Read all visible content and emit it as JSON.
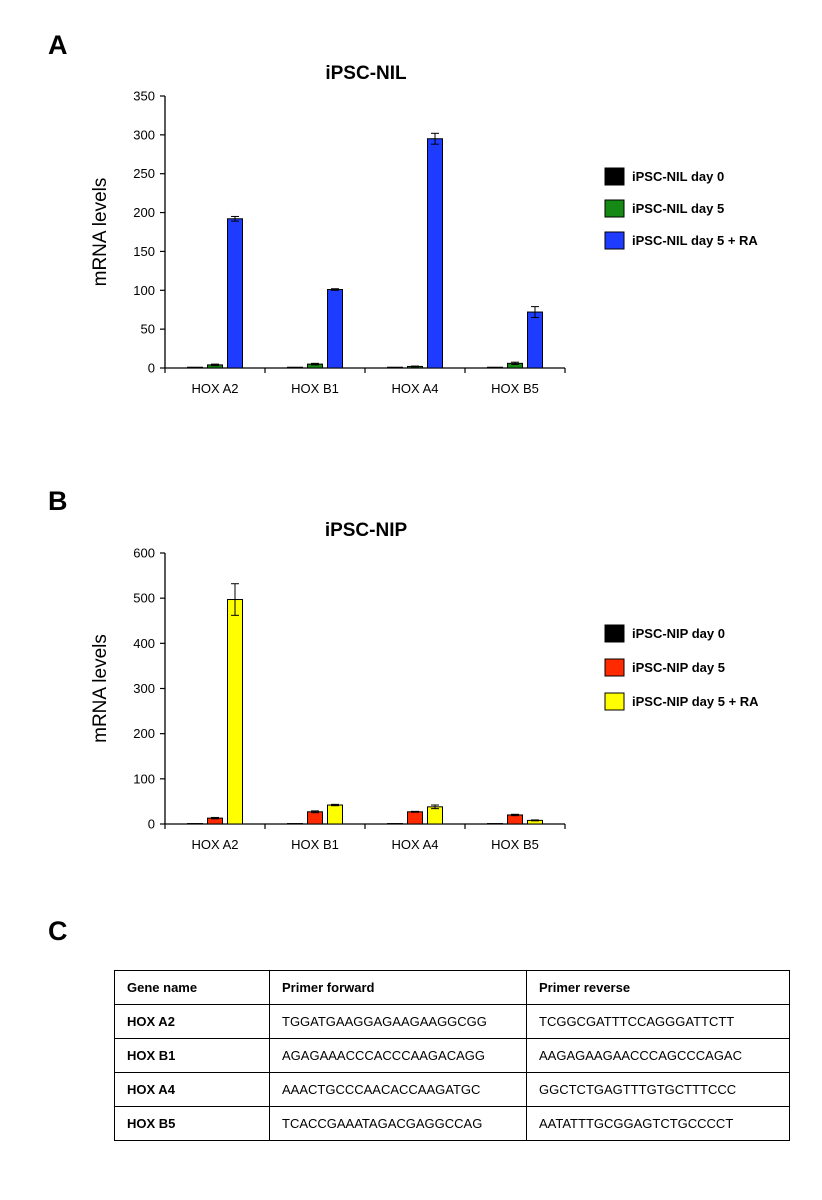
{
  "panels": [
    {
      "letter": "A"
    },
    {
      "letter": "B"
    },
    {
      "letter": "C"
    }
  ],
  "chart_data": [
    {
      "type": "bar",
      "title": "iPSC-NIL",
      "xlabel": "",
      "ylabel": "mRNA levels",
      "ylim": [
        0,
        350
      ],
      "yticks": [
        0,
        50,
        100,
        150,
        200,
        250,
        300,
        350
      ],
      "grid": false,
      "legend_position": "right",
      "categories": [
        "HOX A2",
        "HOX B1",
        "HOX A4",
        "HOX B5"
      ],
      "series": [
        {
          "name": "iPSC-NIL day 0",
          "color": "#000000",
          "values": [
            1,
            1,
            1,
            1
          ],
          "errors": [
            0,
            0,
            0,
            0
          ]
        },
        {
          "name": "iPSC-NIL day 5",
          "color": "#148a14",
          "values": [
            4,
            5,
            2,
            6
          ],
          "errors": [
            1,
            1,
            0.5,
            1.5
          ]
        },
        {
          "name": "iPSC-NIL day 5 + RA",
          "color": "#1e3cff",
          "values": [
            192,
            101,
            295,
            72
          ],
          "errors": [
            3,
            1,
            7,
            7
          ]
        }
      ]
    },
    {
      "type": "bar",
      "title": "iPSC-NIP",
      "xlabel": "",
      "ylabel": "mRNA levels",
      "ylim": [
        0,
        600
      ],
      "yticks": [
        0,
        100,
        200,
        300,
        400,
        500,
        600
      ],
      "grid": false,
      "legend_position": "right",
      "categories": [
        "HOX A2",
        "HOX B1",
        "HOX A4",
        "HOX B5"
      ],
      "series": [
        {
          "name": "iPSC-NIP day 0",
          "color": "#000000",
          "values": [
            1,
            1,
            1,
            1
          ],
          "errors": [
            0,
            0,
            0,
            0
          ]
        },
        {
          "name": "iPSC-NIP day 5",
          "color": "#ff2a00",
          "values": [
            13,
            27,
            27,
            20
          ],
          "errors": [
            1.5,
            2,
            1,
            1.5
          ]
        },
        {
          "name": "iPSC-NIP day 5 + RA",
          "color": "#ffff00",
          "values": [
            497,
            42,
            38,
            8
          ],
          "errors": [
            35,
            1.5,
            4,
            1
          ]
        }
      ]
    },
    {
      "type": "table",
      "columns": [
        "Gene name",
        "Primer forward",
        "Primer reverse"
      ],
      "rows": [
        [
          "HOX A2",
          "TGGATGAAGGAGAAGAAGGCGG",
          "TCGGCGATTTCCAGGGATTCTT"
        ],
        [
          "HOX B1",
          "AGAGAAACCCACCCAAGACAGG",
          "AAGAGAAGAACCCAGCCCAGAC"
        ],
        [
          "HOX A4",
          "AAACTGCCCAACACCAAGATGC",
          "GGCTCTGAGTTTGTGCTTTCCC"
        ],
        [
          "HOX B5",
          "TCACCGAAATAGACGAGGCCAG",
          "AATATTTGCGGAGTCTGCCCCT"
        ]
      ]
    }
  ]
}
